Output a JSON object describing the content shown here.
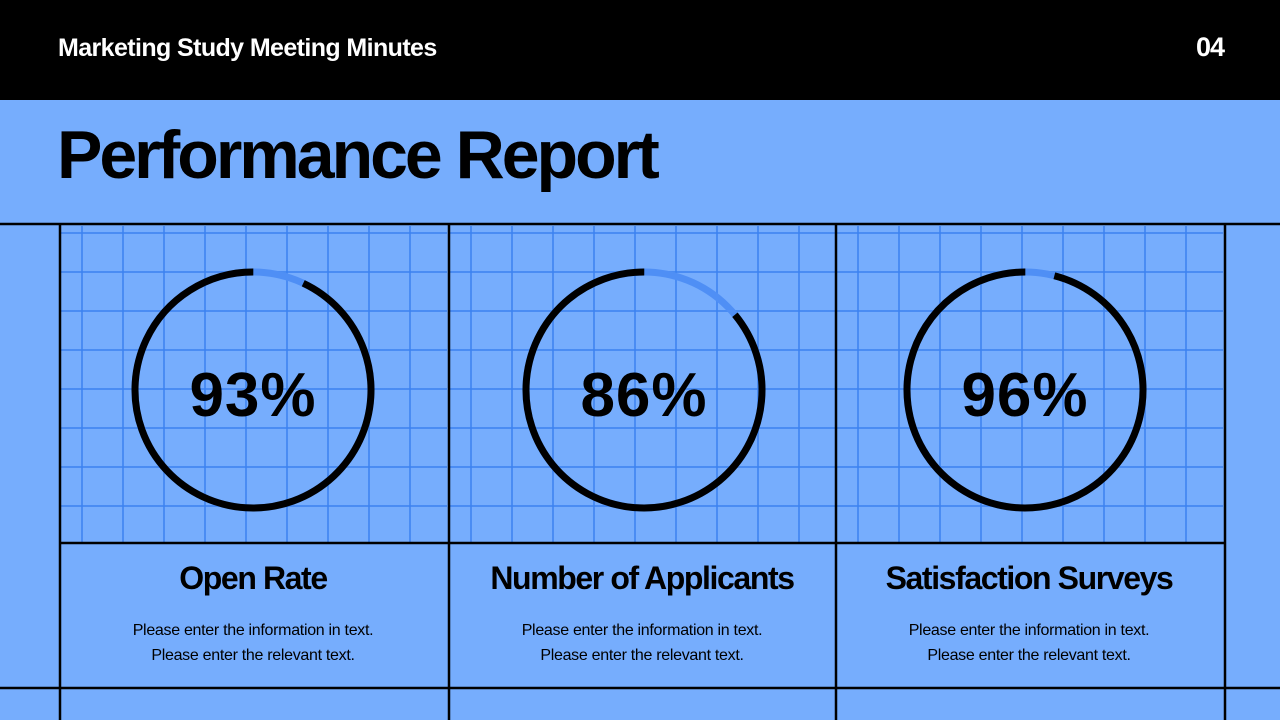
{
  "header": {
    "title": "Marketing Study Meeting Minutes",
    "page_number": "04"
  },
  "main": {
    "title": "Performance Report"
  },
  "colors": {
    "background": "#76adfd",
    "header_background": "#000000",
    "ring_track": "#4f8ff5",
    "ring_progress": "#000000",
    "grid_line": "#3a82f0"
  },
  "cards": [
    {
      "percent_label": "93%",
      "value": 93,
      "title": "Open Rate",
      "description": [
        "Please enter the information in text.",
        "Please enter the relevant text."
      ]
    },
    {
      "percent_label": "86%",
      "value": 86,
      "title": "Number of Applicants",
      "description": [
        "Please enter the information in text.",
        "Please enter the relevant text."
      ]
    },
    {
      "percent_label": "96%",
      "value": 96,
      "title": "Satisfaction Surveys",
      "description": [
        "Please enter the information in text.",
        "Please enter the relevant text."
      ]
    }
  ]
}
